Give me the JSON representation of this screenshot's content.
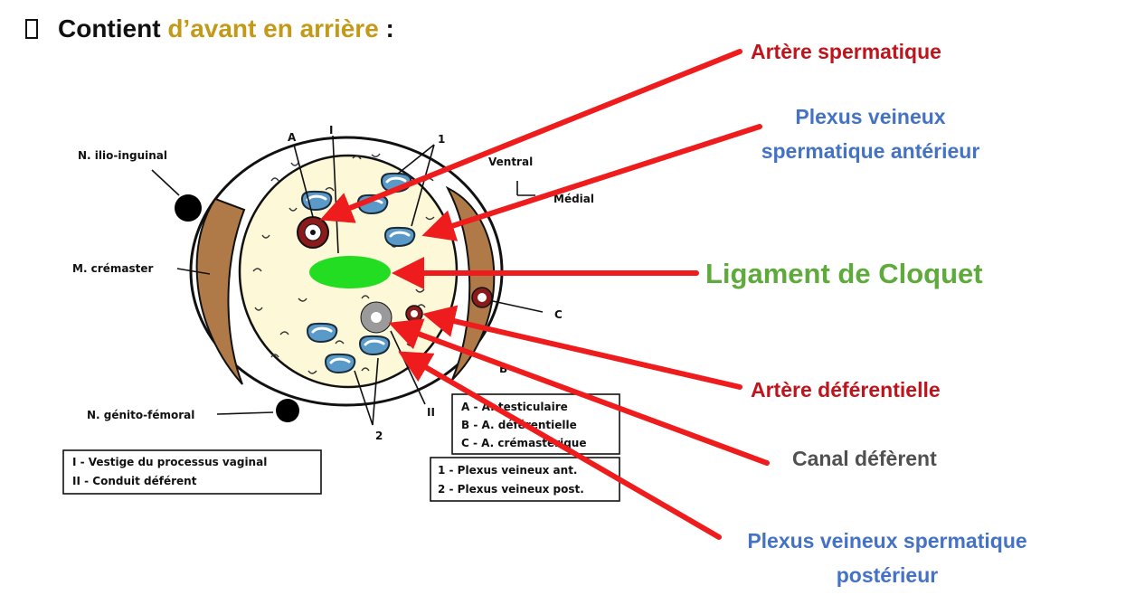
{
  "heading": {
    "bullet": "",
    "prefix": "Contient",
    "accent": "d’avant en arrière",
    "suffix": ":"
  },
  "callouts": {
    "artere_spermatique": "Artère spermatique",
    "plexus_anterieur_1": "Plexus veineux",
    "plexus_anterieur_2": "spermatique antérieur",
    "ligament": "Ligament de Cloquet",
    "artere_deferentielle": "Artère déférentielle",
    "canal_deferent": "Canal défèrent",
    "plexus_posterieur_1": "Plexus veineux spermatique",
    "plexus_posterieur_2": "postérieur"
  },
  "figure": {
    "n_ilio_inguinal": "N. ilio-inguinal",
    "m_cremaster": "M. crémaster",
    "n_genito_femoral": "N. génito-fémoral",
    "ventral": "Ventral",
    "medial": "Médial",
    "mark_A": "A",
    "mark_I": "I",
    "mark_1": "1",
    "mark_C": "C",
    "mark_B": "B",
    "mark_2": "2",
    "mark_II": "II",
    "legend_left_1": "I - Vestige du processus vaginal",
    "legend_left_2": "II - Conduit déférent",
    "legend_arteries_1": "A - A. testiculaire",
    "legend_arteries_2": "B - A. déférentielle",
    "legend_arteries_3": "C - A. crémastérique",
    "legend_plexus_1": "1 - Plexus veineux ant.",
    "legend_plexus_2": "2 - Plexus veineux post."
  },
  "colors": {
    "arrow": "#ee1c1c",
    "cord_fill": "#fdf8d8",
    "cremaster": "#b07a48",
    "ligament": "#22dd22",
    "vein": "#5a9ac8",
    "artery": "#8b1a1a"
  }
}
